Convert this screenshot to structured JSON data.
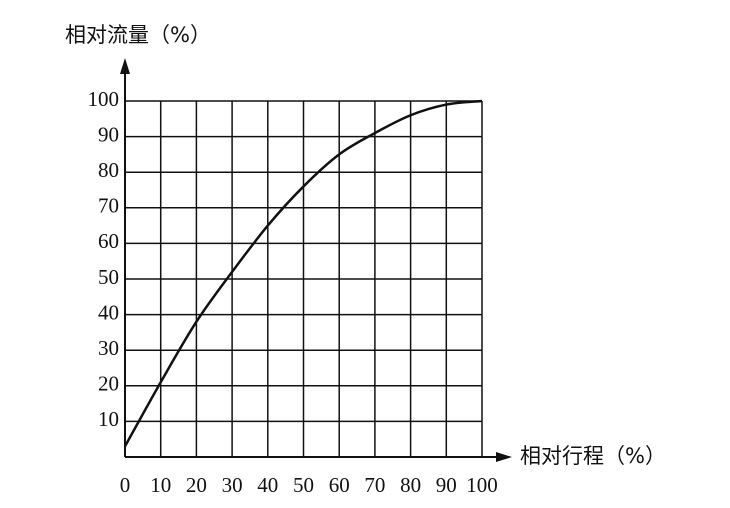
{
  "chart_data": {
    "type": "line",
    "ylabel": "相对流量（%）",
    "xlabel": "相对行程（%）",
    "x": [
      0,
      10,
      20,
      30,
      40,
      50,
      60,
      70,
      80,
      90,
      100
    ],
    "values": [
      3,
      21,
      38,
      52,
      65,
      76,
      85,
      91,
      96,
      99,
      100
    ],
    "color": "#111111",
    "xlim": [
      0,
      100
    ],
    "ylim": [
      0,
      100
    ],
    "xticks": [
      0,
      10,
      20,
      30,
      40,
      50,
      60,
      70,
      80,
      90,
      100
    ],
    "yticks": [
      10,
      20,
      30,
      40,
      50,
      60,
      70,
      80,
      90,
      100
    ],
    "grid": true
  }
}
